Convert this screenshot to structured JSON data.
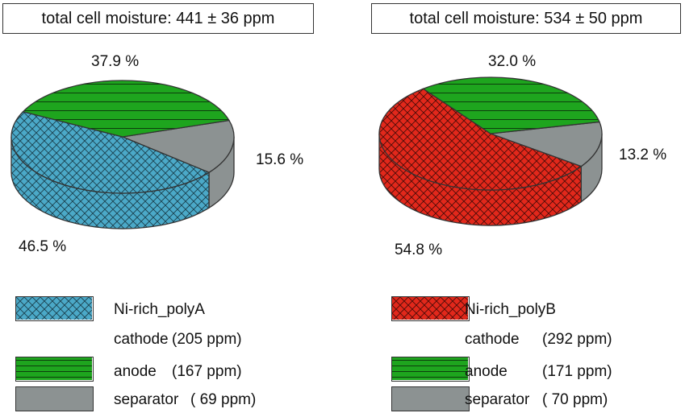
{
  "colors": {
    "cathode_left": "#4ba9c8",
    "cathode_right": "#e2281b",
    "anode": "#1ea51e",
    "separator": "#8c9292",
    "outline": "#333333"
  },
  "chart_data": [
    {
      "type": "pie",
      "title": "total cell moisture: 441 ± 36 ppm",
      "categories": [
        "Ni-rich_polyA cathode",
        "anode",
        "separator"
      ],
      "values": [
        46.5,
        37.9,
        15.6
      ],
      "value_labels": [
        "46.5 %",
        "37.9 %",
        "15.6 %"
      ],
      "ppm": [
        205,
        167,
        69
      ],
      "legend": [
        {
          "name": "Ni-rich_polyA",
          "sub": "cathode",
          "value": "(205 ppm)"
        },
        {
          "name": "anode",
          "value": "(167 ppm)"
        },
        {
          "name": "separator",
          "value": "( 69 ppm)"
        }
      ],
      "legend_placement": "bottom"
    },
    {
      "type": "pie",
      "title": "total cell moisture: 534 ± 50 ppm",
      "categories": [
        "Ni-rich_polyB cathode",
        "anode",
        "separator"
      ],
      "values": [
        54.8,
        32.0,
        13.2
      ],
      "value_labels": [
        "54.8 %",
        "32.0 %",
        "13.2 %"
      ],
      "ppm": [
        292,
        171,
        70
      ],
      "legend": [
        {
          "name": "Ni-rich_polyB",
          "sub": "cathode",
          "value": "(292 ppm)"
        },
        {
          "name": "anode",
          "value": "(171 ppm)"
        },
        {
          "name": "separator",
          "value": "( 70 ppm)"
        }
      ],
      "legend_placement": "bottom"
    }
  ]
}
